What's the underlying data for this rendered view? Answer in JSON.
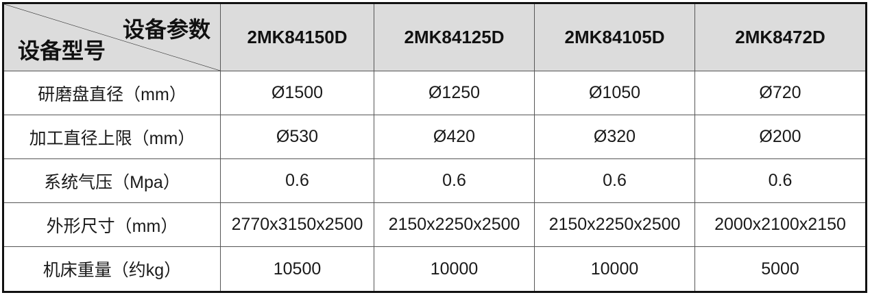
{
  "header": {
    "corner_top": "设备参数",
    "corner_bottom": "设备型号",
    "models": [
      "2MK84150D",
      "2MK84125D",
      "2MK84105D",
      "2MK8472D"
    ]
  },
  "rows": [
    {
      "label": "研磨盘直径（mm）",
      "values": [
        "Ø1500",
        "Ø1250",
        "Ø1050",
        "Ø720"
      ]
    },
    {
      "label": "加工直径上限（mm）",
      "values": [
        "Ø530",
        "Ø420",
        "Ø320",
        "Ø200"
      ]
    },
    {
      "label": "系统气压（Mpa）",
      "values": [
        "0.6",
        "0.6",
        "0.6",
        "0.6"
      ]
    },
    {
      "label": "外形尺寸（mm）",
      "values": [
        "2770x3150x2500",
        "2150x2250x2500",
        "2150x2250x2500",
        "2000x2100x2150"
      ]
    },
    {
      "label": "机床重量（约kg）",
      "values": [
        "10500",
        "10000",
        "10000",
        "5000"
      ]
    }
  ]
}
